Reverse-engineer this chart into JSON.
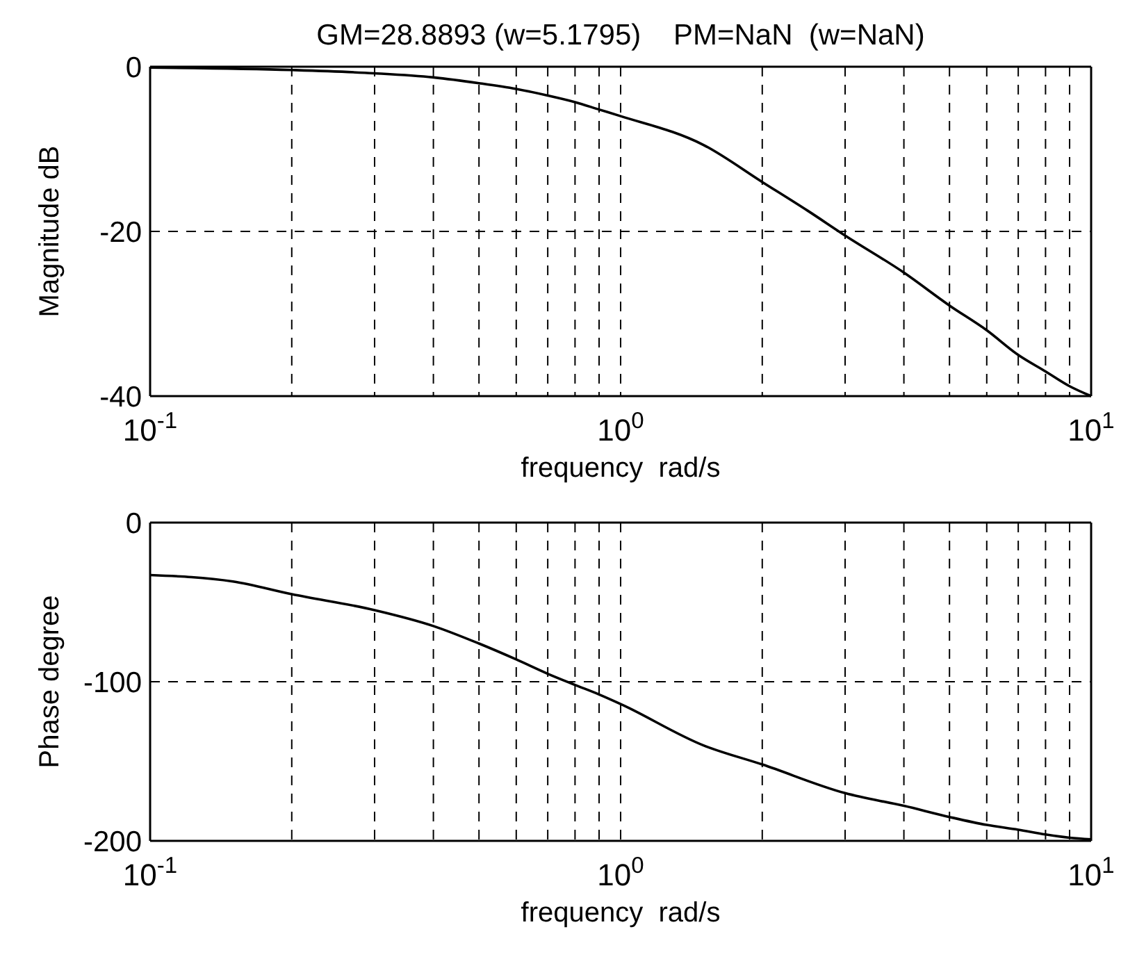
{
  "chart_data": [
    {
      "type": "line",
      "title": "GM=28.8893 (w=5.1795)    PM=NaN  (w=NaN)",
      "xlabel": "frequency  rad/s",
      "ylabel": "Magnitude dB",
      "log": "x",
      "grid": true,
      "line_style": "solid",
      "x": [
        0.1,
        0.2,
        0.3,
        0.4,
        0.5,
        0.6,
        0.7,
        0.8,
        0.9,
        1,
        1.5,
        2,
        2.5,
        3,
        4,
        5,
        6,
        7,
        8,
        9,
        10
      ],
      "series": [
        {
          "color": "#000000",
          "values": [
            -0.1,
            -0.4,
            -0.8,
            -1.3,
            -2,
            -2.7,
            -3.5,
            -4.3,
            -5.2,
            -6,
            -9.5,
            -14,
            -17.5,
            -20.5,
            -25,
            -29,
            -32,
            -35,
            -37,
            -38.8,
            -40
          ]
        }
      ],
      "xlim": [
        0.1,
        10
      ],
      "ylim": [
        -40,
        0
      ],
      "xticks": [
        {
          "value": 0.1,
          "label": "10$^{-1}$"
        },
        {
          "value": 0.2,
          "label": null
        },
        {
          "value": 0.3,
          "label": null
        },
        {
          "value": 0.4,
          "label": null
        },
        {
          "value": 0.5,
          "label": null
        },
        {
          "value": 0.6,
          "label": null
        },
        {
          "value": 0.7,
          "label": null
        },
        {
          "value": 0.8,
          "label": null
        },
        {
          "value": 0.9,
          "label": null
        },
        {
          "value": 1,
          "label": "10$^{0}$"
        },
        {
          "value": 2,
          "label": null
        },
        {
          "value": 3,
          "label": null
        },
        {
          "value": 4,
          "label": null
        },
        {
          "value": 5,
          "label": null
        },
        {
          "value": 6,
          "label": null
        },
        {
          "value": 7,
          "label": null
        },
        {
          "value": 8,
          "label": null
        },
        {
          "value": 9,
          "label": null
        },
        {
          "value": 10,
          "label": "10$^{1}$"
        }
      ],
      "yticks": [
        -40,
        -20,
        0
      ]
    },
    {
      "type": "line",
      "xlabel": "frequency  rad/s",
      "ylabel": "Phase degree",
      "log": "x",
      "grid": true,
      "line_style": "solid",
      "x": [
        0.1,
        0.15,
        0.2,
        0.3,
        0.4,
        0.5,
        0.6,
        0.7,
        0.8,
        0.9,
        1,
        1.5,
        2,
        3,
        4,
        5,
        6,
        7,
        8,
        9,
        10
      ],
      "series": [
        {
          "color": "#000000",
          "values": [
            -33,
            -37,
            -45,
            -55,
            -65,
            -76,
            -86,
            -95,
            -102,
            -108,
            -114,
            -140,
            -152,
            -170,
            -178,
            -185,
            -190,
            -193,
            -196,
            -198,
            -199
          ]
        }
      ],
      "xlim": [
        0.1,
        10
      ],
      "ylim": [
        -200,
        0
      ],
      "xticks": [
        {
          "value": 0.1,
          "label": "10$^{-1}$"
        },
        {
          "value": 0.2,
          "label": null
        },
        {
          "value": 0.3,
          "label": null
        },
        {
          "value": 0.4,
          "label": null
        },
        {
          "value": 0.5,
          "label": null
        },
        {
          "value": 0.6,
          "label": null
        },
        {
          "value": 0.7,
          "label": null
        },
        {
          "value": 0.8,
          "label": null
        },
        {
          "value": 0.9,
          "label": null
        },
        {
          "value": 1,
          "label": "10$^{0}$"
        },
        {
          "value": 2,
          "label": null
        },
        {
          "value": 3,
          "label": null
        },
        {
          "value": 4,
          "label": null
        },
        {
          "value": 5,
          "label": null
        },
        {
          "value": 6,
          "label": null
        },
        {
          "value": 7,
          "label": null
        },
        {
          "value": 8,
          "label": null
        },
        {
          "value": 9,
          "label": null
        },
        {
          "value": 10,
          "label": "10$^{1}$"
        }
      ],
      "yticks": [
        -200,
        -100,
        0
      ]
    }
  ]
}
